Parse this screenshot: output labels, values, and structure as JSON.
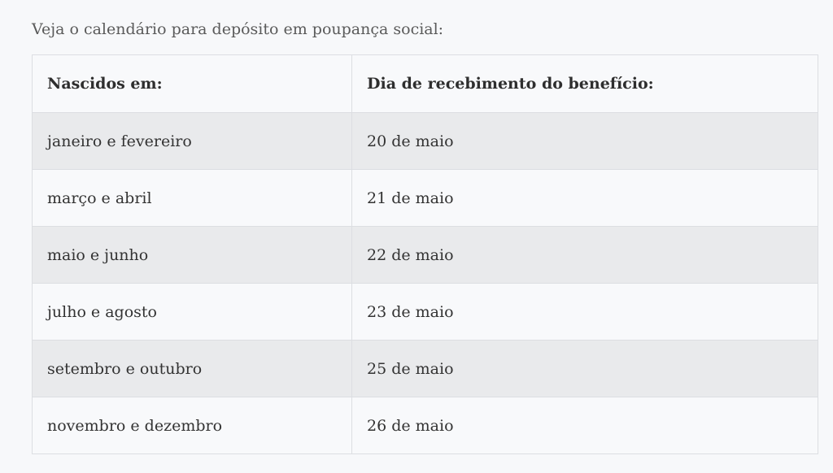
{
  "intro_text": "Veja o calendário para depósito em poupança social:",
  "table": {
    "headers": [
      "Nascidos em:",
      "Dia de recebimento do benefício:"
    ],
    "rows": [
      [
        "janeiro e fevereiro",
        "20 de maio"
      ],
      [
        "março e abril",
        "21 de maio"
      ],
      [
        "maio e junho",
        "22 de maio"
      ],
      [
        "julho e agosto",
        "23 de maio"
      ],
      [
        "setembro e outubro",
        "25 de maio"
      ],
      [
        "novembro e dezembro",
        "26 de maio"
      ]
    ]
  },
  "colors": {
    "page_background": "#f7f8fa",
    "row_shaded": "#e9eaec",
    "row_plain": "#f8f9fb",
    "border": "#dcdee2",
    "text": "#333333"
  }
}
